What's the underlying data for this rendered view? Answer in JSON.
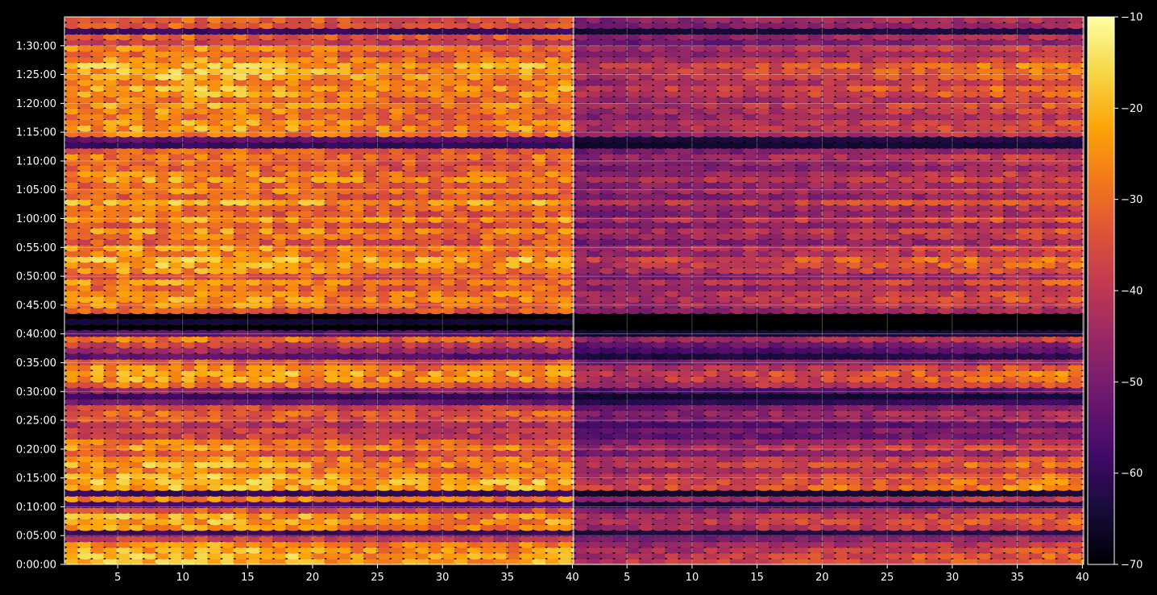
{
  "chart_data": {
    "type": "heatmap",
    "title": "",
    "colormap": "inferno",
    "grid": true,
    "background": "#000000",
    "colorbar": {
      "position": "right",
      "range": [
        -70,
        -10
      ],
      "ticks": [
        -10,
        -20,
        -30,
        -40,
        -50,
        -60,
        -70
      ],
      "tick_labels": [
        "−10",
        "−20",
        "−30",
        "−40",
        "−50",
        "−60",
        "−70"
      ]
    },
    "y_axis": {
      "label": "",
      "range_seconds": [
        0,
        5700
      ],
      "ticks": [
        0,
        300,
        600,
        900,
        1200,
        1500,
        1800,
        2100,
        2400,
        2700,
        3000,
        3300,
        3600,
        3900,
        4200,
        4500,
        4800,
        5100,
        5400
      ],
      "tick_labels": [
        "0:00:00",
        "0:05:00",
        "0:10:00",
        "0:15:00",
        "0:20:00",
        "0:25:00",
        "0:30:00",
        "0:35:00",
        "0:40:00",
        "0:45:00",
        "0:50:00",
        "0:55:00",
        "1:00:00",
        "1:05:00",
        "1:10:00",
        "1:15:00",
        "1:20:00",
        "1:25:00",
        "1:30:00"
      ]
    },
    "panels": [
      {
        "name": "",
        "x_range": [
          1,
          40
        ],
        "x_ticks": [
          5,
          10,
          15,
          20,
          25,
          30,
          35,
          40
        ],
        "x_tick_labels": [
          "5",
          "10",
          "15",
          "20",
          "25",
          "30",
          "35",
          "40"
        ]
      },
      {
        "name": "",
        "x_range": [
          1,
          40
        ],
        "x_ticks": [
          5,
          10,
          15,
          20,
          25,
          30,
          35,
          40
        ],
        "x_tick_labels": [
          "5",
          "10",
          "15",
          "20",
          "25",
          "30",
          "35",
          "40"
        ]
      }
    ],
    "row_intensity_profile": {
      "description_units": "relative row brightness per ~1-minute bin, 0..1, from t=0 upward",
      "panel_left": [
        0.92,
        0.95,
        0.9,
        0.85,
        0.62,
        0.2,
        0.85,
        0.88,
        0.9,
        0.7,
        0.25,
        0.82,
        0.2,
        0.92,
        0.95,
        0.9,
        0.8,
        0.9,
        0.85,
        0.7,
        0.85,
        0.78,
        0.6,
        0.62,
        0.55,
        0.7,
        0.74,
        0.65,
        0.35,
        0.2,
        0.45,
        0.78,
        0.86,
        0.92,
        0.84,
        0.7,
        0.3,
        0.48,
        0.62,
        0.78,
        0.3,
        0.05,
        0.1,
        0.05,
        0.72,
        0.82,
        0.86,
        0.84,
        0.76,
        0.85,
        0.7,
        0.84,
        0.9,
        0.95,
        0.8,
        0.86,
        0.7,
        0.78,
        0.84,
        0.7,
        0.86,
        0.72,
        0.78,
        0.92,
        0.7,
        0.8,
        0.75,
        0.86,
        0.8,
        0.72,
        0.75,
        0.8,
        0.72,
        0.2,
        0.3,
        0.8,
        0.88,
        0.85,
        0.78,
        0.82,
        0.86,
        0.78,
        0.88,
        0.9,
        0.82,
        0.9,
        0.92,
        0.95,
        0.84,
        0.75,
        0.82,
        0.6,
        0.72,
        0.2,
        0.7,
        0.72
      ],
      "panel_right": [
        0.7,
        0.66,
        0.62,
        0.55,
        0.45,
        0.15,
        0.6,
        0.66,
        0.62,
        0.5,
        0.15,
        0.55,
        0.1,
        0.78,
        0.72,
        0.7,
        0.55,
        0.7,
        0.62,
        0.45,
        0.6,
        0.5,
        0.35,
        0.4,
        0.3,
        0.45,
        0.5,
        0.42,
        0.2,
        0.1,
        0.3,
        0.6,
        0.68,
        0.72,
        0.62,
        0.45,
        0.15,
        0.28,
        0.38,
        0.55,
        0.12,
        0.02,
        0.05,
        0.02,
        0.48,
        0.58,
        0.62,
        0.6,
        0.5,
        0.62,
        0.45,
        0.62,
        0.68,
        0.74,
        0.55,
        0.62,
        0.45,
        0.55,
        0.6,
        0.45,
        0.62,
        0.48,
        0.5,
        0.66,
        0.45,
        0.55,
        0.5,
        0.62,
        0.55,
        0.45,
        0.5,
        0.55,
        0.45,
        0.1,
        0.15,
        0.55,
        0.62,
        0.6,
        0.52,
        0.58,
        0.62,
        0.55,
        0.66,
        0.7,
        0.58,
        0.66,
        0.7,
        0.74,
        0.6,
        0.5,
        0.58,
        0.4,
        0.5,
        0.12,
        0.45,
        0.5
      ]
    }
  }
}
